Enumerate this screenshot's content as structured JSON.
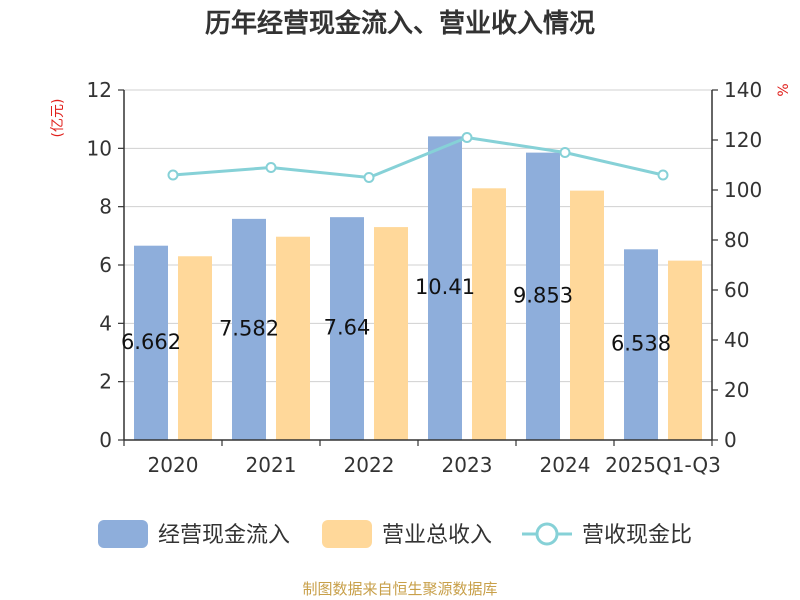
{
  "chart_data": {
    "type": "bar",
    "title": "历年经营现金流入、营业收入情况",
    "categories": [
      "2020",
      "2021",
      "2022",
      "2023",
      "2024",
      "2025Q1-Q3"
    ],
    "series": [
      {
        "name": "经营现金流入",
        "type": "bar",
        "axis": "left",
        "color": "#8eaedb",
        "values": [
          6.662,
          7.582,
          7.64,
          10.41,
          9.853,
          6.538
        ],
        "labels": [
          "6.662",
          "7.582",
          "7.64",
          "10.41",
          "9.853",
          "6.538"
        ]
      },
      {
        "name": "营业总收入",
        "type": "bar",
        "axis": "left",
        "color": "#ffd89a",
        "values": [
          6.3,
          6.97,
          7.3,
          8.63,
          8.55,
          6.15
        ]
      },
      {
        "name": "营收现金比",
        "type": "line",
        "axis": "right",
        "color": "#86d1d7",
        "values": [
          106,
          109,
          105,
          121,
          115,
          106
        ]
      }
    ],
    "y_left": {
      "unit": "(亿元)",
      "lim": [
        0,
        12
      ],
      "ticks": [
        "0",
        "2",
        "4",
        "6",
        "8",
        "10",
        "12"
      ]
    },
    "y_right": {
      "unit": "%",
      "lim": [
        0,
        140
      ],
      "ticks": [
        "0",
        "20",
        "40",
        "60",
        "80",
        "100",
        "120",
        "140"
      ]
    },
    "grid": true,
    "legend": "bottom"
  },
  "source": "制图数据来自恒生聚源数据库"
}
